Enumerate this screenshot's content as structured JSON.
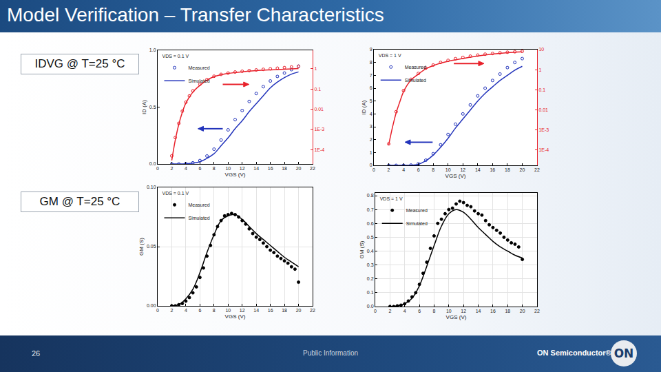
{
  "slide": {
    "title": "Model Verification – Transfer Characteristics",
    "labels": [
      "IDVG @ T=25 °C",
      "GM @ T=25 °C"
    ],
    "page": "26",
    "footer": "Public Information",
    "company": "ON Semiconductor®",
    "logo": "ON"
  },
  "chart_data": [
    {
      "type": "line",
      "xlabel": "VGS (V)",
      "ylabel": "ID (A)",
      "annotations": [
        "VDS = 0.1 V"
      ],
      "xlim": [
        0,
        22
      ],
      "xticks": [
        0,
        2,
        4,
        6,
        8,
        10,
        12,
        14,
        16,
        18,
        20,
        22
      ],
      "ylim": [
        0,
        1
      ],
      "yticks": [
        {
          "value": 0,
          "label": "0.0"
        },
        0.5,
        {
          "value": 1,
          "label": "1.0"
        }
      ],
      "y2lim": [
        2e-05,
        8
      ],
      "y2ticks": [
        1,
        0.1,
        0.01,
        {
          "value": 0.001,
          "label": "1E-3"
        },
        {
          "value": 0.0001,
          "label": "1E-4"
        }
      ],
      "log": "y2",
      "grid": false,
      "legend": "top left",
      "series": [
        {
          "name": "Measured",
          "type": "scatter",
          "marker": "circle-open",
          "color": "#2233bb",
          "x": [
            2,
            3,
            4,
            5,
            6,
            7,
            8,
            9,
            10,
            11,
            12,
            13,
            14,
            15,
            16,
            17,
            18,
            19,
            20
          ],
          "values": [
            0,
            0,
            0.003,
            0.01,
            0.03,
            0.07,
            0.13,
            0.21,
            0.3,
            0.39,
            0.47,
            0.55,
            0.62,
            0.68,
            0.73,
            0.77,
            0.8,
            0.83,
            0.86
          ]
        },
        {
          "name": "Simulated",
          "type": "line",
          "line_style": "solid",
          "color": "#2233bb",
          "x": [
            2,
            3,
            4,
            5,
            6,
            7,
            8,
            9,
            10,
            11,
            12,
            13,
            14,
            15,
            16,
            17,
            18,
            19,
            20
          ],
          "values": [
            0,
            0,
            0.002,
            0.008,
            0.02,
            0.05,
            0.09,
            0.16,
            0.23,
            0.31,
            0.38,
            0.46,
            0.53,
            0.6,
            0.67,
            0.72,
            0.76,
            0.79,
            0.81
          ]
        },
        {
          "name": "Measured",
          "type": "scatter",
          "marker": "circle-open",
          "color": "#e8202a",
          "axis": "y2",
          "x": [
            2,
            2.5,
            3,
            3.5,
            4,
            4.5,
            5,
            6,
            7,
            8,
            9,
            10,
            11,
            12,
            13,
            14,
            15,
            16,
            17,
            18,
            19,
            20
          ],
          "values": [
            5e-05,
            0.0004,
            0.002,
            0.008,
            0.022,
            0.045,
            0.08,
            0.17,
            0.29,
            0.42,
            0.52,
            0.6,
            0.68,
            0.74,
            0.8,
            0.86,
            0.92,
            0.98,
            1.05,
            1.12,
            1.2,
            1.3
          ]
        },
        {
          "name": "Simulated",
          "type": "line",
          "line_style": "solid",
          "color": "#e8202a",
          "axis": "y2",
          "x": [
            2,
            2.5,
            3,
            3.5,
            4,
            5,
            6,
            7,
            8,
            9,
            10,
            12,
            14,
            16,
            18,
            20
          ],
          "values": [
            3e-05,
            0.0003,
            0.0018,
            0.007,
            0.02,
            0.07,
            0.15,
            0.27,
            0.4,
            0.5,
            0.58,
            0.7,
            0.8,
            0.87,
            0.93,
            1.0
          ]
        }
      ]
    },
    {
      "type": "line",
      "xlabel": "VGS (V)",
      "ylabel": "ID (A)",
      "annotations": [
        "VDS = 1 V"
      ],
      "xlim": [
        0,
        22
      ],
      "xticks": [
        0,
        2,
        4,
        6,
        8,
        10,
        12,
        14,
        16,
        18,
        20,
        22
      ],
      "ylim": [
        0,
        9
      ],
      "yticks": [
        0,
        1,
        2,
        3,
        4,
        5,
        6,
        7,
        8,
        9
      ],
      "y2lim": [
        1.7e-05,
        10
      ],
      "y2ticks": [
        10,
        1,
        0.1,
        0.01,
        {
          "value": 0.001,
          "label": "1E-3"
        },
        {
          "value": 0.0001,
          "label": "1E-4"
        }
      ],
      "log": "y2",
      "grid": false,
      "legend": "top left",
      "series": [
        {
          "name": "Measured",
          "type": "scatter",
          "marker": "circle-open",
          "color": "#2233bb",
          "x": [
            2,
            3,
            4,
            5,
            6,
            7,
            8,
            9,
            10,
            11,
            12,
            13,
            14,
            15,
            16,
            17,
            18,
            19,
            20
          ],
          "values": [
            0,
            0,
            0,
            0.02,
            0.12,
            0.4,
            0.9,
            1.6,
            2.4,
            3.2,
            4.0,
            4.7,
            5.4,
            6.0,
            6.6,
            7.1,
            7.6,
            8.0,
            8.3
          ]
        },
        {
          "name": "Simulated",
          "type": "line",
          "line_style": "solid",
          "color": "#2233bb",
          "x": [
            2,
            3,
            4,
            5,
            6,
            7,
            8,
            9,
            10,
            11,
            12,
            13,
            14,
            15,
            16,
            17,
            18,
            19,
            20
          ],
          "values": [
            0,
            0,
            0,
            0.01,
            0.08,
            0.35,
            0.8,
            1.4,
            2.1,
            2.9,
            3.6,
            4.3,
            5.0,
            5.6,
            6.1,
            6.6,
            7.0,
            7.4,
            7.7
          ]
        },
        {
          "name": "Measured",
          "type": "scatter",
          "marker": "circle-open",
          "color": "#e8202a",
          "axis": "y2",
          "x": [
            2,
            3,
            4,
            5,
            6,
            7,
            8,
            9,
            10,
            11,
            12,
            13,
            14,
            15,
            16,
            17,
            18,
            19,
            20
          ],
          "values": [
            0.0002,
            0.008,
            0.09,
            0.33,
            0.65,
            1.2,
            1.7,
            2.3,
            2.9,
            3.5,
            4.1,
            4.7,
            5.3,
            5.9,
            6.4,
            6.9,
            7.4,
            7.8,
            8.2
          ]
        },
        {
          "name": "Simulated",
          "type": "line",
          "line_style": "solid",
          "color": "#e8202a",
          "axis": "y2",
          "x": [
            2,
            2.5,
            3,
            3.5,
            4,
            5,
            6,
            7,
            8,
            10,
            12,
            14,
            16,
            18,
            20
          ],
          "values": [
            0.00018,
            0.0013,
            0.007,
            0.025,
            0.08,
            0.3,
            0.6,
            1.1,
            1.6,
            2.6,
            3.6,
            4.8,
            6.0,
            7.0,
            7.7
          ]
        }
      ]
    },
    {
      "type": "line",
      "xlabel": "VGS (V)",
      "ylabel": "GM (S)",
      "annotations": [
        "VDS = 0.1 V"
      ],
      "xlim": [
        0,
        22
      ],
      "xticks": [
        0,
        2,
        4,
        6,
        8,
        10,
        12,
        14,
        16,
        18,
        20,
        22
      ],
      "ylim": [
        0,
        0.1
      ],
      "yticks": [
        {
          "value": 0,
          "label": "0.00"
        },
        0.05,
        {
          "value": 0.1,
          "label": "0.10"
        }
      ],
      "grid": true,
      "legend": "top left",
      "series": [
        {
          "name": "Measured",
          "type": "scatter",
          "marker": "circle",
          "color": "#000000",
          "x": [
            2,
            2.5,
            3,
            3.5,
            4,
            4.5,
            5,
            5.5,
            6,
            6.5,
            7,
            7.5,
            8,
            8.5,
            9,
            9.5,
            10,
            10.5,
            11,
            11.5,
            12,
            12.5,
            13,
            13.5,
            14,
            14.5,
            15,
            15.5,
            16,
            16.5,
            17,
            17.5,
            18,
            18.5,
            19,
            19.5,
            20
          ],
          "values": [
            0,
            0,
            0.001,
            0.002,
            0.004,
            0.007,
            0.011,
            0.016,
            0.024,
            0.032,
            0.042,
            0.051,
            0.06,
            0.067,
            0.072,
            0.076,
            0.077,
            0.078,
            0.077,
            0.075,
            0.072,
            0.069,
            0.065,
            0.061,
            0.058,
            0.056,
            0.053,
            0.05,
            0.047,
            0.045,
            0.042,
            0.04,
            0.038,
            0.036,
            0.033,
            0.031,
            0.02
          ]
        },
        {
          "name": "Simulated",
          "type": "line",
          "line_style": "solid",
          "color": "#000000",
          "x": [
            2,
            3,
            4,
            5,
            6,
            7,
            8,
            9,
            10,
            11,
            12,
            13,
            14,
            15,
            16,
            17,
            18,
            19,
            20
          ],
          "values": [
            0,
            0.001,
            0.006,
            0.014,
            0.028,
            0.045,
            0.06,
            0.072,
            0.076,
            0.077,
            0.073,
            0.067,
            0.061,
            0.056,
            0.051,
            0.046,
            0.041,
            0.037,
            0.033
          ]
        }
      ]
    },
    {
      "type": "line",
      "xlabel": "VGS (V)",
      "ylabel": "GM (S)",
      "annotations": [
        "VDS = 1 V"
      ],
      "xlim": [
        0,
        22
      ],
      "xticks": [
        0,
        2,
        4,
        6,
        8,
        10,
        12,
        14,
        16,
        18,
        20,
        22
      ],
      "ylim": [
        0,
        0.82
      ],
      "yticks": [
        {
          "value": 0,
          "label": "0.0"
        },
        0.1,
        0.2,
        0.3,
        0.4,
        0.5,
        0.6,
        0.7,
        0.8
      ],
      "grid": true,
      "legend": "top left",
      "series": [
        {
          "name": "Measured",
          "type": "scatter",
          "marker": "circle",
          "color": "#000000",
          "x": [
            2,
            2.5,
            3,
            3.5,
            4,
            4.5,
            5,
            5.5,
            6,
            6.5,
            7,
            7.5,
            8,
            8.5,
            9,
            9.5,
            10,
            10.5,
            11,
            11.5,
            12,
            12.5,
            13,
            13.5,
            14,
            14.5,
            15,
            15.5,
            16,
            16.5,
            17,
            17.5,
            18,
            18.5,
            19,
            19.5,
            20
          ],
          "values": [
            0,
            0,
            0.005,
            0.01,
            0.02,
            0.04,
            0.07,
            0.1,
            0.16,
            0.24,
            0.32,
            0.42,
            0.51,
            0.6,
            0.63,
            0.67,
            0.7,
            0.71,
            0.74,
            0.76,
            0.75,
            0.73,
            0.72,
            0.69,
            0.67,
            0.66,
            0.62,
            0.59,
            0.57,
            0.55,
            0.53,
            0.5,
            0.48,
            0.46,
            0.45,
            0.43,
            0.34
          ]
        },
        {
          "name": "Simulated",
          "type": "line",
          "line_style": "solid",
          "color": "#000000",
          "x": [
            2,
            3,
            4,
            5,
            6,
            7,
            8,
            9,
            10,
            11,
            12,
            13,
            14,
            15,
            16,
            17,
            18,
            19,
            20
          ],
          "values": [
            0,
            0.005,
            0.02,
            0.06,
            0.15,
            0.29,
            0.44,
            0.58,
            0.67,
            0.7,
            0.68,
            0.63,
            0.57,
            0.52,
            0.47,
            0.43,
            0.4,
            0.37,
            0.35
          ]
        }
      ]
    }
  ]
}
